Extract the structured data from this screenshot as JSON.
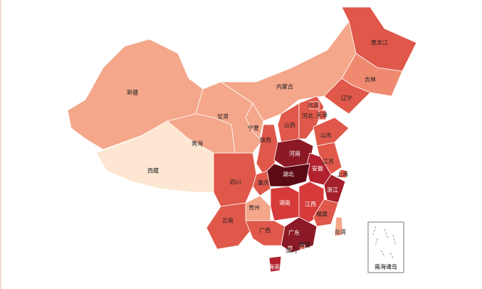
{
  "regions": [
    {
      "name": "黑龙江",
      "color": "#e0584a"
    },
    {
      "name": "吉林",
      "color": "#ef8a70"
    },
    {
      "name": "辽宁",
      "color": "#e0584a"
    },
    {
      "name": "内蒙古",
      "color": "#f4a78a"
    },
    {
      "name": "新疆",
      "color": "#f4a78a"
    },
    {
      "name": "西藏",
      "color": "#fde7d2"
    },
    {
      "name": "青海",
      "color": "#f4a78a"
    },
    {
      "name": "甘肃",
      "color": "#f4a78a"
    },
    {
      "name": "宁夏",
      "color": "#f4a78a"
    },
    {
      "name": "陕西",
      "color": "#e0584a"
    },
    {
      "name": "山西",
      "color": "#e0584a"
    },
    {
      "name": "河北",
      "color": "#e0584a"
    },
    {
      "name": "北京",
      "color": "#e0584a"
    },
    {
      "name": "天津",
      "color": "#e0584a"
    },
    {
      "name": "山东",
      "color": "#e0584a"
    },
    {
      "name": "河南",
      "color": "#8b1a26"
    },
    {
      "name": "江苏",
      "color": "#e0584a"
    },
    {
      "name": "安徽",
      "color": "#b2222e"
    },
    {
      "name": "上海",
      "color": "#e0584a"
    },
    {
      "name": "湖北",
      "color": "#5c0a14"
    },
    {
      "name": "重庆",
      "color": "#e0584a"
    },
    {
      "name": "四川",
      "color": "#e0584a"
    },
    {
      "name": "浙江",
      "color": "#a3202c"
    },
    {
      "name": "湖南",
      "color": "#d63a3a"
    },
    {
      "name": "江西",
      "color": "#d63a3a"
    },
    {
      "name": "福建",
      "color": "#e0584a"
    },
    {
      "name": "贵州",
      "color": "#f4a78a"
    },
    {
      "name": "云南",
      "color": "#e0584a"
    },
    {
      "name": "广西",
      "color": "#e0584a"
    },
    {
      "name": "广东",
      "color": "#8b1a26"
    },
    {
      "name": "台湾",
      "color": "#f4a78a"
    },
    {
      "name": "海南",
      "color": "#b2222e"
    },
    {
      "name": "香港",
      "color": "#e0584a"
    },
    {
      "name": "澳门",
      "color": "#e0584a"
    }
  ],
  "inset_label": "南海诸岛"
}
